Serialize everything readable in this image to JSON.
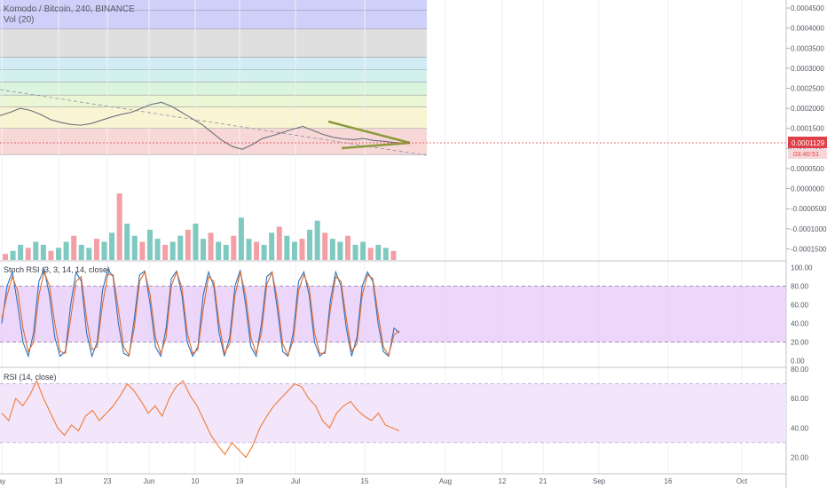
{
  "header": {
    "symbol_line": "Komodo / Bitcoin, 240, BINANCE",
    "volume_label": "Vol (20)"
  },
  "price_tag": {
    "value": "0.0001129",
    "countdown": "03:40:51",
    "color": "#e0404a"
  },
  "panes": {
    "stoch_title": "Stoch RSI (3, 3, 14, 14, close)",
    "rsi_title": "RSI (14, close)"
  },
  "colors": {
    "stoch_k": "#2f74c0",
    "stoch_d": "#e06b2d",
    "stoch_band": "#e5c8f7",
    "rsi_line": "#f07b34",
    "rsi_band": "#f2e3fb",
    "trendline": "#8a9a3a",
    "vol_up": "#7fc9c0",
    "vol_down": "#f2a0a6"
  },
  "chart_data": [
    {
      "type": "line",
      "title": "Komodo / Bitcoin, 240, BINANCE",
      "yaxis_ticks": [
        "0.0004500",
        "0.0004000",
        "0.0003500",
        "0.0003000",
        "0.0002500",
        "0.0002000",
        "0.0001500",
        "0.0001000",
        "0.0000500",
        "0.0000000",
        "-0.0000500",
        "-0.0001000",
        "-0.0001500"
      ],
      "ylim": [
        -0.00018,
        0.00047
      ],
      "xaxis_ticks": [
        "ay",
        "13",
        "23",
        "Jun",
        "10",
        "19",
        "Jul",
        "15",
        "Aug",
        "12",
        "21",
        "Sep",
        "16",
        "Oct"
      ],
      "last_value": 0.0001129,
      "fib_levels": [
        0.000445,
        0.000398,
        0.000327,
        0.000297,
        0.000265,
        0.000233,
        0.000204,
        0.00015,
        8.5e-05
      ],
      "fib_colors": [
        "#c9cbf8",
        "#dcdcdc",
        "#cdeaf5",
        "#cdf0ea",
        "#d7f3d9",
        "#e8f5cf",
        "#f8f3cd",
        "#f7d3d3"
      ],
      "series": [
        {
          "values": [
            0.000182,
            0.00019,
            0.0002,
            0.000195,
            0.000185,
            0.000172,
            0.000165,
            0.00016,
            0.000158,
            0.000162,
            0.00017,
            0.000178,
            0.000185,
            0.00019,
            0.0002,
            0.00021,
            0.000215,
            0.000205,
            0.00019,
            0.000175,
            0.00016,
            0.00014,
            0.00012,
            0.000105,
            9.8e-05,
            0.00011,
            0.000125,
            0.000132,
            0.00014,
            0.000148,
            0.000155,
            0.000145,
            0.000135,
            0.000128,
            0.000124,
            0.000122,
            0.000125,
            0.00012,
            0.000118,
            0.000115,
            0.000113
          ]
        }
      ]
    },
    {
      "type": "bar",
      "title": "Vol (20)",
      "values": [
        2,
        3,
        5,
        4,
        6,
        5,
        3,
        4,
        6,
        8,
        5,
        4,
        7,
        6,
        9,
        22,
        12,
        8,
        6,
        10,
        7,
        5,
        6,
        8,
        10,
        12,
        7,
        9,
        6,
        5,
        8,
        14,
        7,
        6,
        5,
        9,
        11,
        8,
        6,
        7,
        10,
        13,
        9,
        7,
        6,
        8,
        5,
        6,
        4,
        5,
        4,
        3
      ]
    },
    {
      "type": "line",
      "title": "Stoch RSI (3, 3, 14, 14, close)",
      "yaxis_ticks": [
        "100.00",
        "80.00",
        "60.00",
        "40.00",
        "20.00",
        "0.00"
      ],
      "ylim": [
        -5,
        105
      ],
      "hlines": [
        80,
        20
      ],
      "series": [
        {
          "values": [
            40,
            80,
            95,
            60,
            20,
            5,
            30,
            85,
            98,
            70,
            25,
            5,
            10,
            60,
            95,
            85,
            30,
            5,
            20,
            75,
            98,
            90,
            40,
            8,
            5,
            45,
            92,
            96,
            60,
            15,
            5,
            35,
            88,
            96,
            70,
            20,
            5,
            15,
            70,
            95,
            80,
            30,
            5,
            25,
            80,
            97,
            60,
            15,
            5,
            40,
            90,
            95,
            55,
            10,
            5,
            30,
            85,
            95,
            70,
            20,
            5,
            10,
            65,
            95,
            80,
            35,
            5,
            25,
            80,
            95,
            85,
            40,
            10,
            5,
            35,
            30
          ]
        },
        {
          "values": [
            45,
            70,
            90,
            75,
            35,
            10,
            20,
            70,
            95,
            80,
            40,
            10,
            8,
            45,
            85,
            90,
            45,
            12,
            15,
            60,
            92,
            92,
            55,
            15,
            6,
            35,
            85,
            95,
            70,
            25,
            8,
            25,
            80,
            95,
            78,
            30,
            8,
            12,
            55,
            90,
            85,
            40,
            8,
            18,
            70,
            95,
            70,
            25,
            8,
            30,
            82,
            95,
            65,
            18,
            6,
            22,
            75,
            92,
            78,
            30,
            8,
            8,
            55,
            90,
            85,
            45,
            10,
            18,
            70,
            92,
            88,
            50,
            15,
            6,
            28,
            32
          ]
        }
      ]
    },
    {
      "type": "line",
      "title": "RSI (14, close)",
      "yaxis_ticks": [
        "80.00",
        "60.00",
        "40.00",
        "20.00"
      ],
      "ylim": [
        10,
        80
      ],
      "hlines": [
        70,
        30
      ],
      "series": [
        {
          "values": [
            50,
            45,
            60,
            55,
            62,
            72,
            60,
            50,
            40,
            35,
            42,
            38,
            48,
            52,
            45,
            50,
            55,
            62,
            70,
            65,
            58,
            50,
            55,
            48,
            60,
            68,
            72,
            62,
            55,
            45,
            35,
            28,
            22,
            30,
            25,
            20,
            28,
            40,
            48,
            55,
            60,
            65,
            70,
            68,
            60,
            55,
            45,
            40,
            50,
            55,
            58,
            52,
            48,
            45,
            50,
            42,
            40,
            38
          ]
        }
      ]
    }
  ]
}
